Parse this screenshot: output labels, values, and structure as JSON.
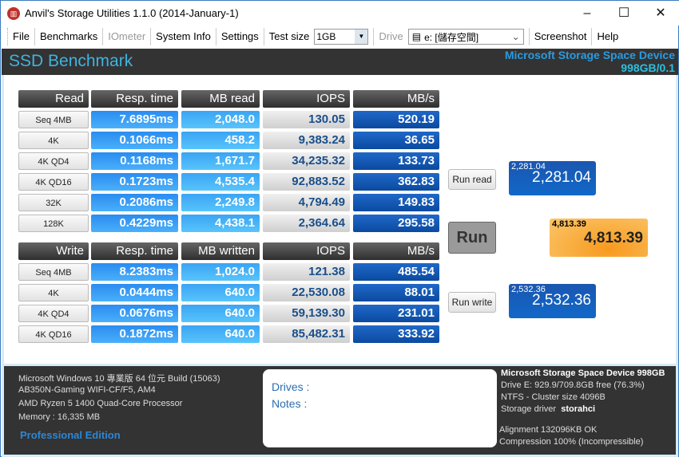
{
  "window": {
    "title": "Anvil's Storage Utilities 1.1.0 (2014-January-1)",
    "minimize": "–",
    "maximize": "☐",
    "close": "✕"
  },
  "menu": {
    "file": "File",
    "benchmarks": "Benchmarks",
    "iometer": "IOmeter",
    "system_info": "System Info",
    "settings": "Settings",
    "test_size_label": "Test size",
    "test_size_value": "1GB",
    "drive_label": "Drive",
    "drive_value": "e: [儲存空間]",
    "screenshot": "Screenshot",
    "help": "Help"
  },
  "banner": {
    "title": "SSD Benchmark",
    "device": "Microsoft Storage Space Device",
    "device_info": "998GB/0.1"
  },
  "read": {
    "headers": [
      "Read",
      "Resp. time",
      "MB read",
      "IOPS",
      "MB/s"
    ],
    "rows": [
      [
        "Seq 4MB",
        "7.6895ms",
        "2,048.0",
        "130.05",
        "520.19"
      ],
      [
        "4K",
        "0.1066ms",
        "458.2",
        "9,383.24",
        "36.65"
      ],
      [
        "4K QD4",
        "0.1168ms",
        "1,671.7",
        "34,235.32",
        "133.73"
      ],
      [
        "4K QD16",
        "0.1723ms",
        "4,535.4",
        "92,883.52",
        "362.83"
      ],
      [
        "32K",
        "0.2086ms",
        "2,249.8",
        "4,794.49",
        "149.83"
      ],
      [
        "128K",
        "0.4229ms",
        "4,438.1",
        "2,364.64",
        "295.58"
      ]
    ]
  },
  "write": {
    "headers": [
      "Write",
      "Resp. time",
      "MB written",
      "IOPS",
      "MB/s"
    ],
    "rows": [
      [
        "Seq 4MB",
        "8.2383ms",
        "1,024.0",
        "121.38",
        "485.54"
      ],
      [
        "4K",
        "0.0444ms",
        "640.0",
        "22,530.08",
        "88.01"
      ],
      [
        "4K QD4",
        "0.0676ms",
        "640.0",
        "59,139.30",
        "231.01"
      ],
      [
        "4K QD16",
        "0.1872ms",
        "640.0",
        "85,482.31",
        "333.92"
      ]
    ]
  },
  "actions": {
    "run_read": "Run read",
    "run": "Run",
    "run_write": "Run write"
  },
  "scores": {
    "read_small": "2,281.04",
    "read": "2,281.04",
    "total_small": "4,813.39",
    "total": "4,813.39",
    "write_small": "2,532.36",
    "write": "2,532.36"
  },
  "system": {
    "os": "Microsoft Windows 10 專業版 64 位元 Build (15063)",
    "board": "AB350N-Gaming WIFI-CF/F5, AM4",
    "cpu": "AMD Ryzen 5 1400 Quad-Core Processor",
    "memory": "Memory : 16,335 MB",
    "edition": "Professional Edition"
  },
  "notes": {
    "drives": "Drives :",
    "notes": "Notes :"
  },
  "drive_info": {
    "name": "Microsoft Storage Space Device 998GB",
    "space": "Drive E: 929.9/709.8GB free (76.3%)",
    "fs": "NTFS - Cluster size 4096B",
    "driver_label": "Storage driver",
    "driver": "storahci",
    "alignment": "Alignment 132096KB OK",
    "compression": "Compression 100% (Incompressible)"
  }
}
